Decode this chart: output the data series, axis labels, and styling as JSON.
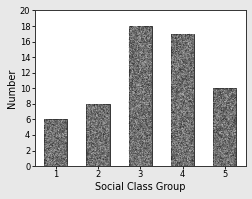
{
  "categories": [
    1,
    2,
    3,
    4,
    5
  ],
  "values": [
    6,
    8,
    18,
    17,
    10
  ],
  "xlabel": "Social Class Group",
  "ylabel": "Number",
  "ylim": [
    0,
    20
  ],
  "yticks": [
    0,
    2,
    4,
    6,
    8,
    10,
    12,
    14,
    16,
    18,
    20
  ],
  "xticks": [
    1,
    2,
    3,
    4,
    5
  ],
  "background_color": "#e8e8e8",
  "plot_bg_color": "#ffffff",
  "bar_face_color": "#666666",
  "bar_edge_color": "#222222",
  "xlabel_fontsize": 7,
  "ylabel_fontsize": 7,
  "tick_fontsize": 6,
  "bar_width": 0.55
}
